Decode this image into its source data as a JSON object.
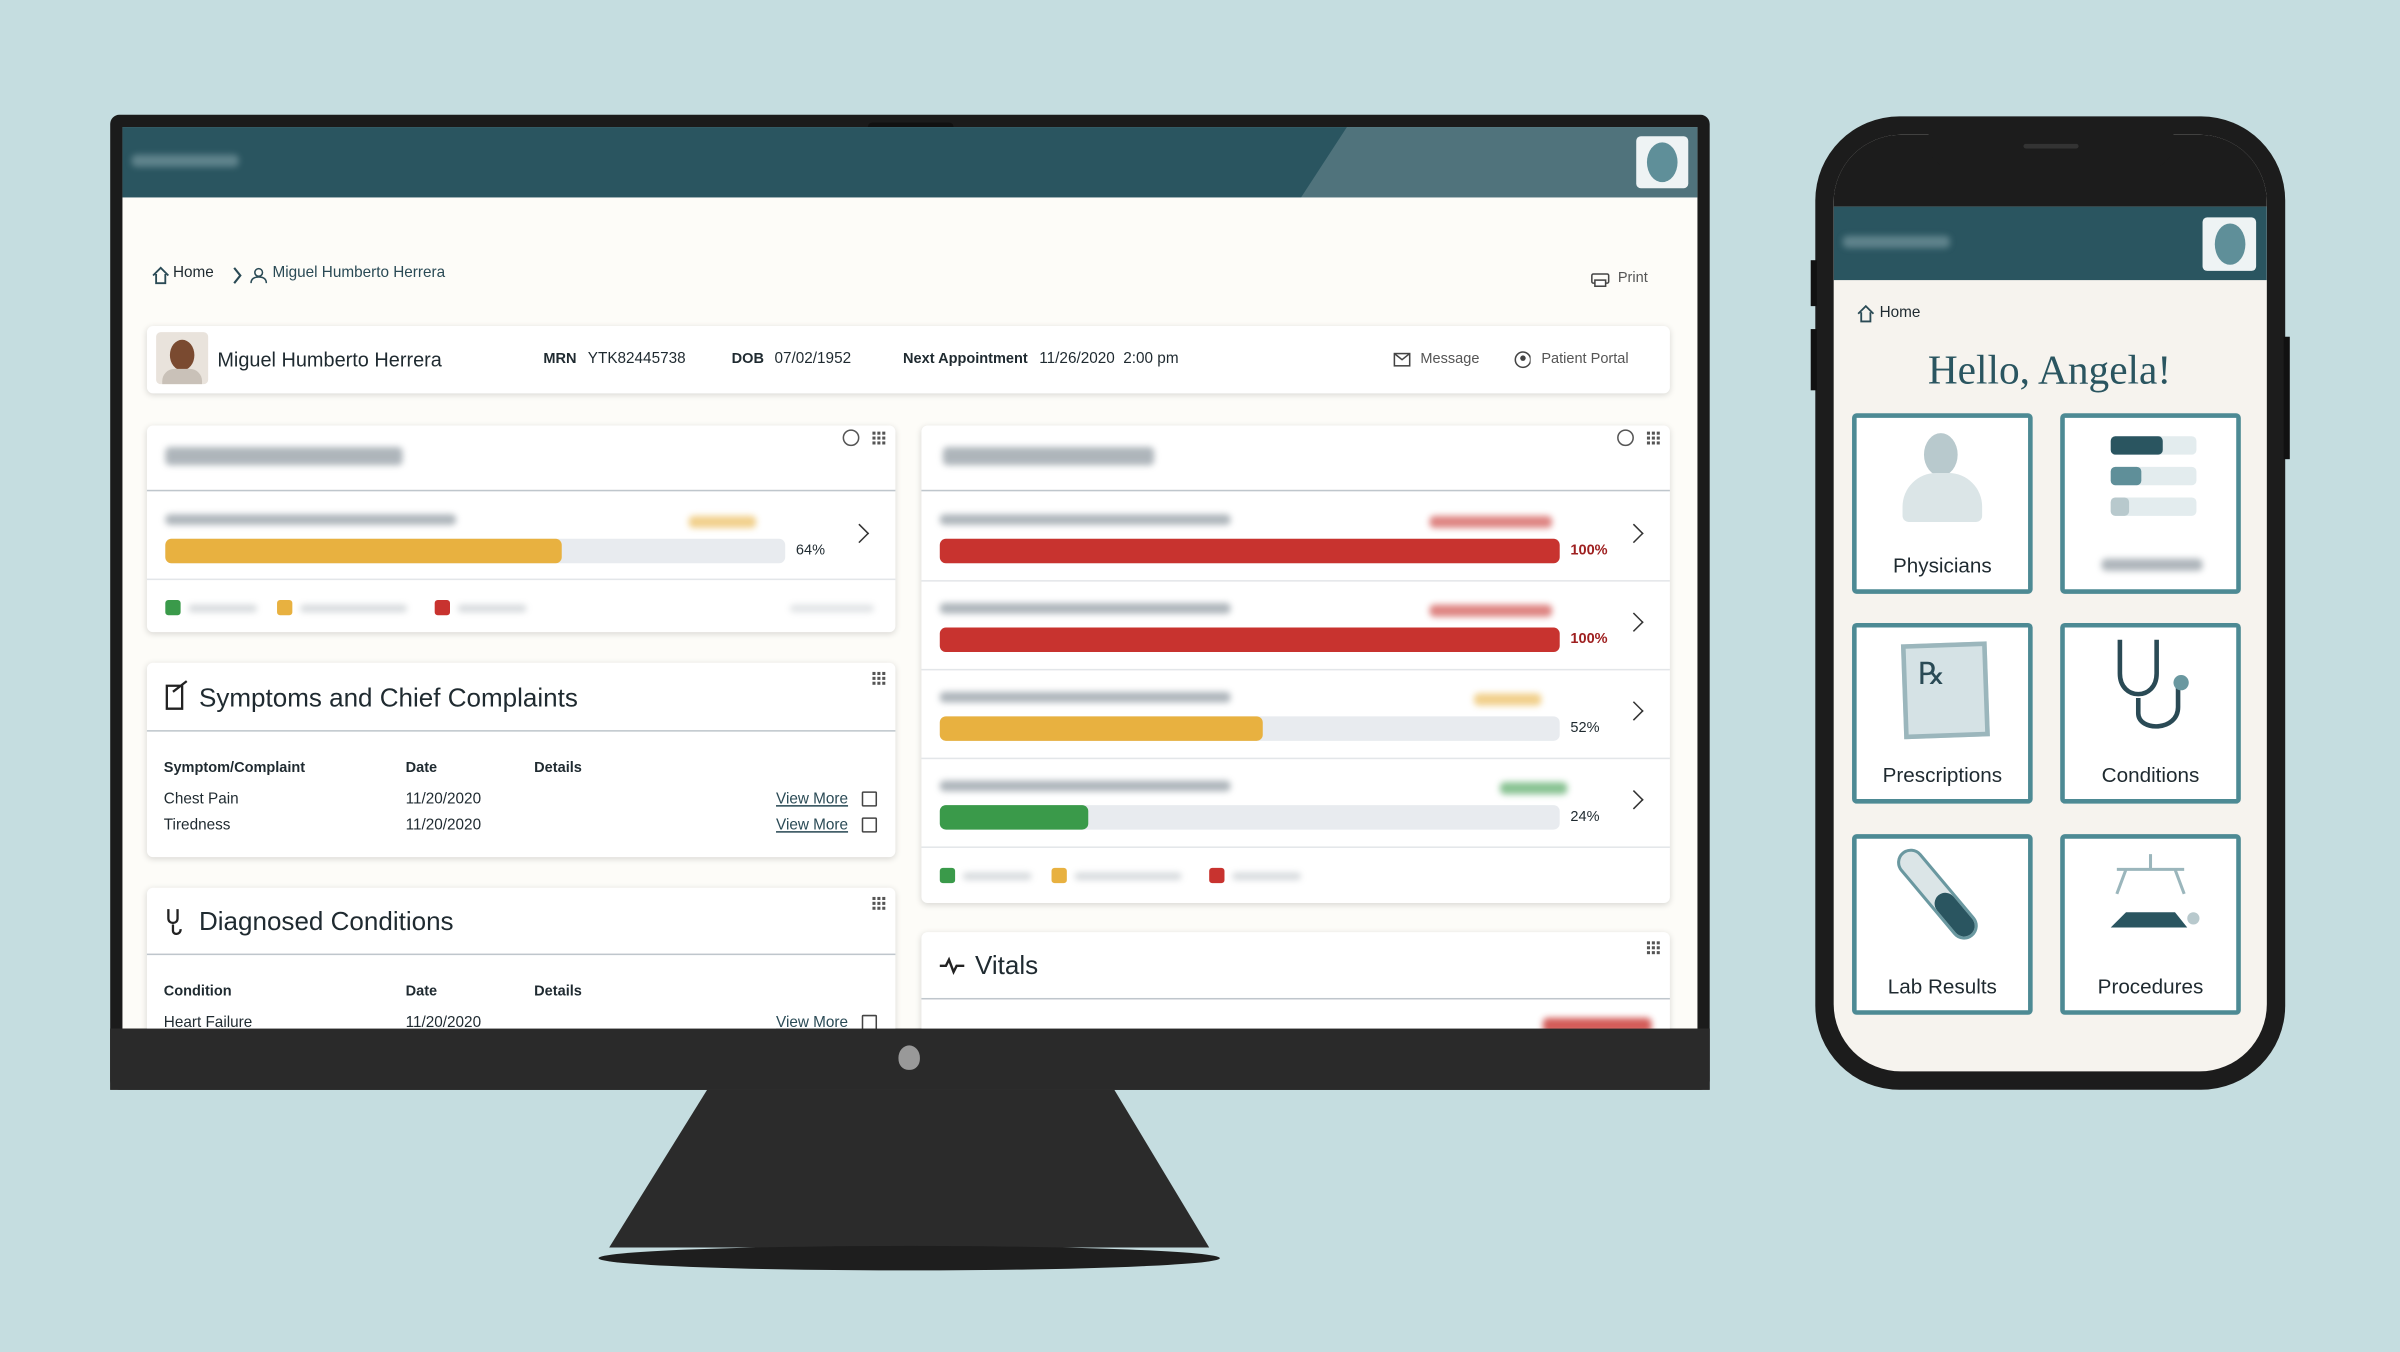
{
  "desktop": {
    "breadcrumb": [
      "Home",
      "Miguel Humberto Herrera"
    ],
    "print": "Print",
    "patient": {
      "name": "Miguel Humberto Herrera",
      "mrn_label": "MRN",
      "mrn": "YTK82445738",
      "dob_label": "DOB",
      "dob": "07/02/1952",
      "appt_label": "Next Appointment",
      "appt": "11/26/2020  2:00 pm"
    },
    "actions": [
      "Message",
      "Patient Portal"
    ],
    "readmission_risk": {
      "items": [
        {
          "value": 64,
          "label": "64%",
          "color": "#e8b140"
        }
      ]
    },
    "symptoms": {
      "title": "Symptoms and Chief Complaints",
      "columns": [
        "Symptom/Complaint",
        "Date",
        "Details"
      ],
      "rows": [
        [
          "Chest Pain",
          "11/20/2020",
          "View More"
        ],
        [
          "Tiredness",
          "11/20/2020",
          "View More"
        ]
      ]
    },
    "conditions": {
      "title": "Diagnosed Conditions",
      "columns": [
        "Condition",
        "Date",
        "Details"
      ],
      "rows": [
        [
          "Heart Failure",
          "11/20/2020",
          "View More"
        ]
      ]
    },
    "condition_risk": {
      "items": [
        {
          "value": 100,
          "label": "100%",
          "color": "#c8332f"
        },
        {
          "value": 100,
          "label": "100%",
          "color": "#c8332f"
        },
        {
          "value": 52,
          "label": "52%",
          "color": "#e8b140"
        },
        {
          "value": 24,
          "label": "24%",
          "color": "#3a9a4a"
        }
      ]
    },
    "vitals": {
      "title": "Vitals"
    }
  },
  "mobile": {
    "breadcrumb": "Home",
    "greeting": "Hello, Angela!",
    "tiles": [
      "Physicians",
      "Prescriptions",
      "Conditions",
      "Lab Results",
      "Procedures"
    ]
  }
}
